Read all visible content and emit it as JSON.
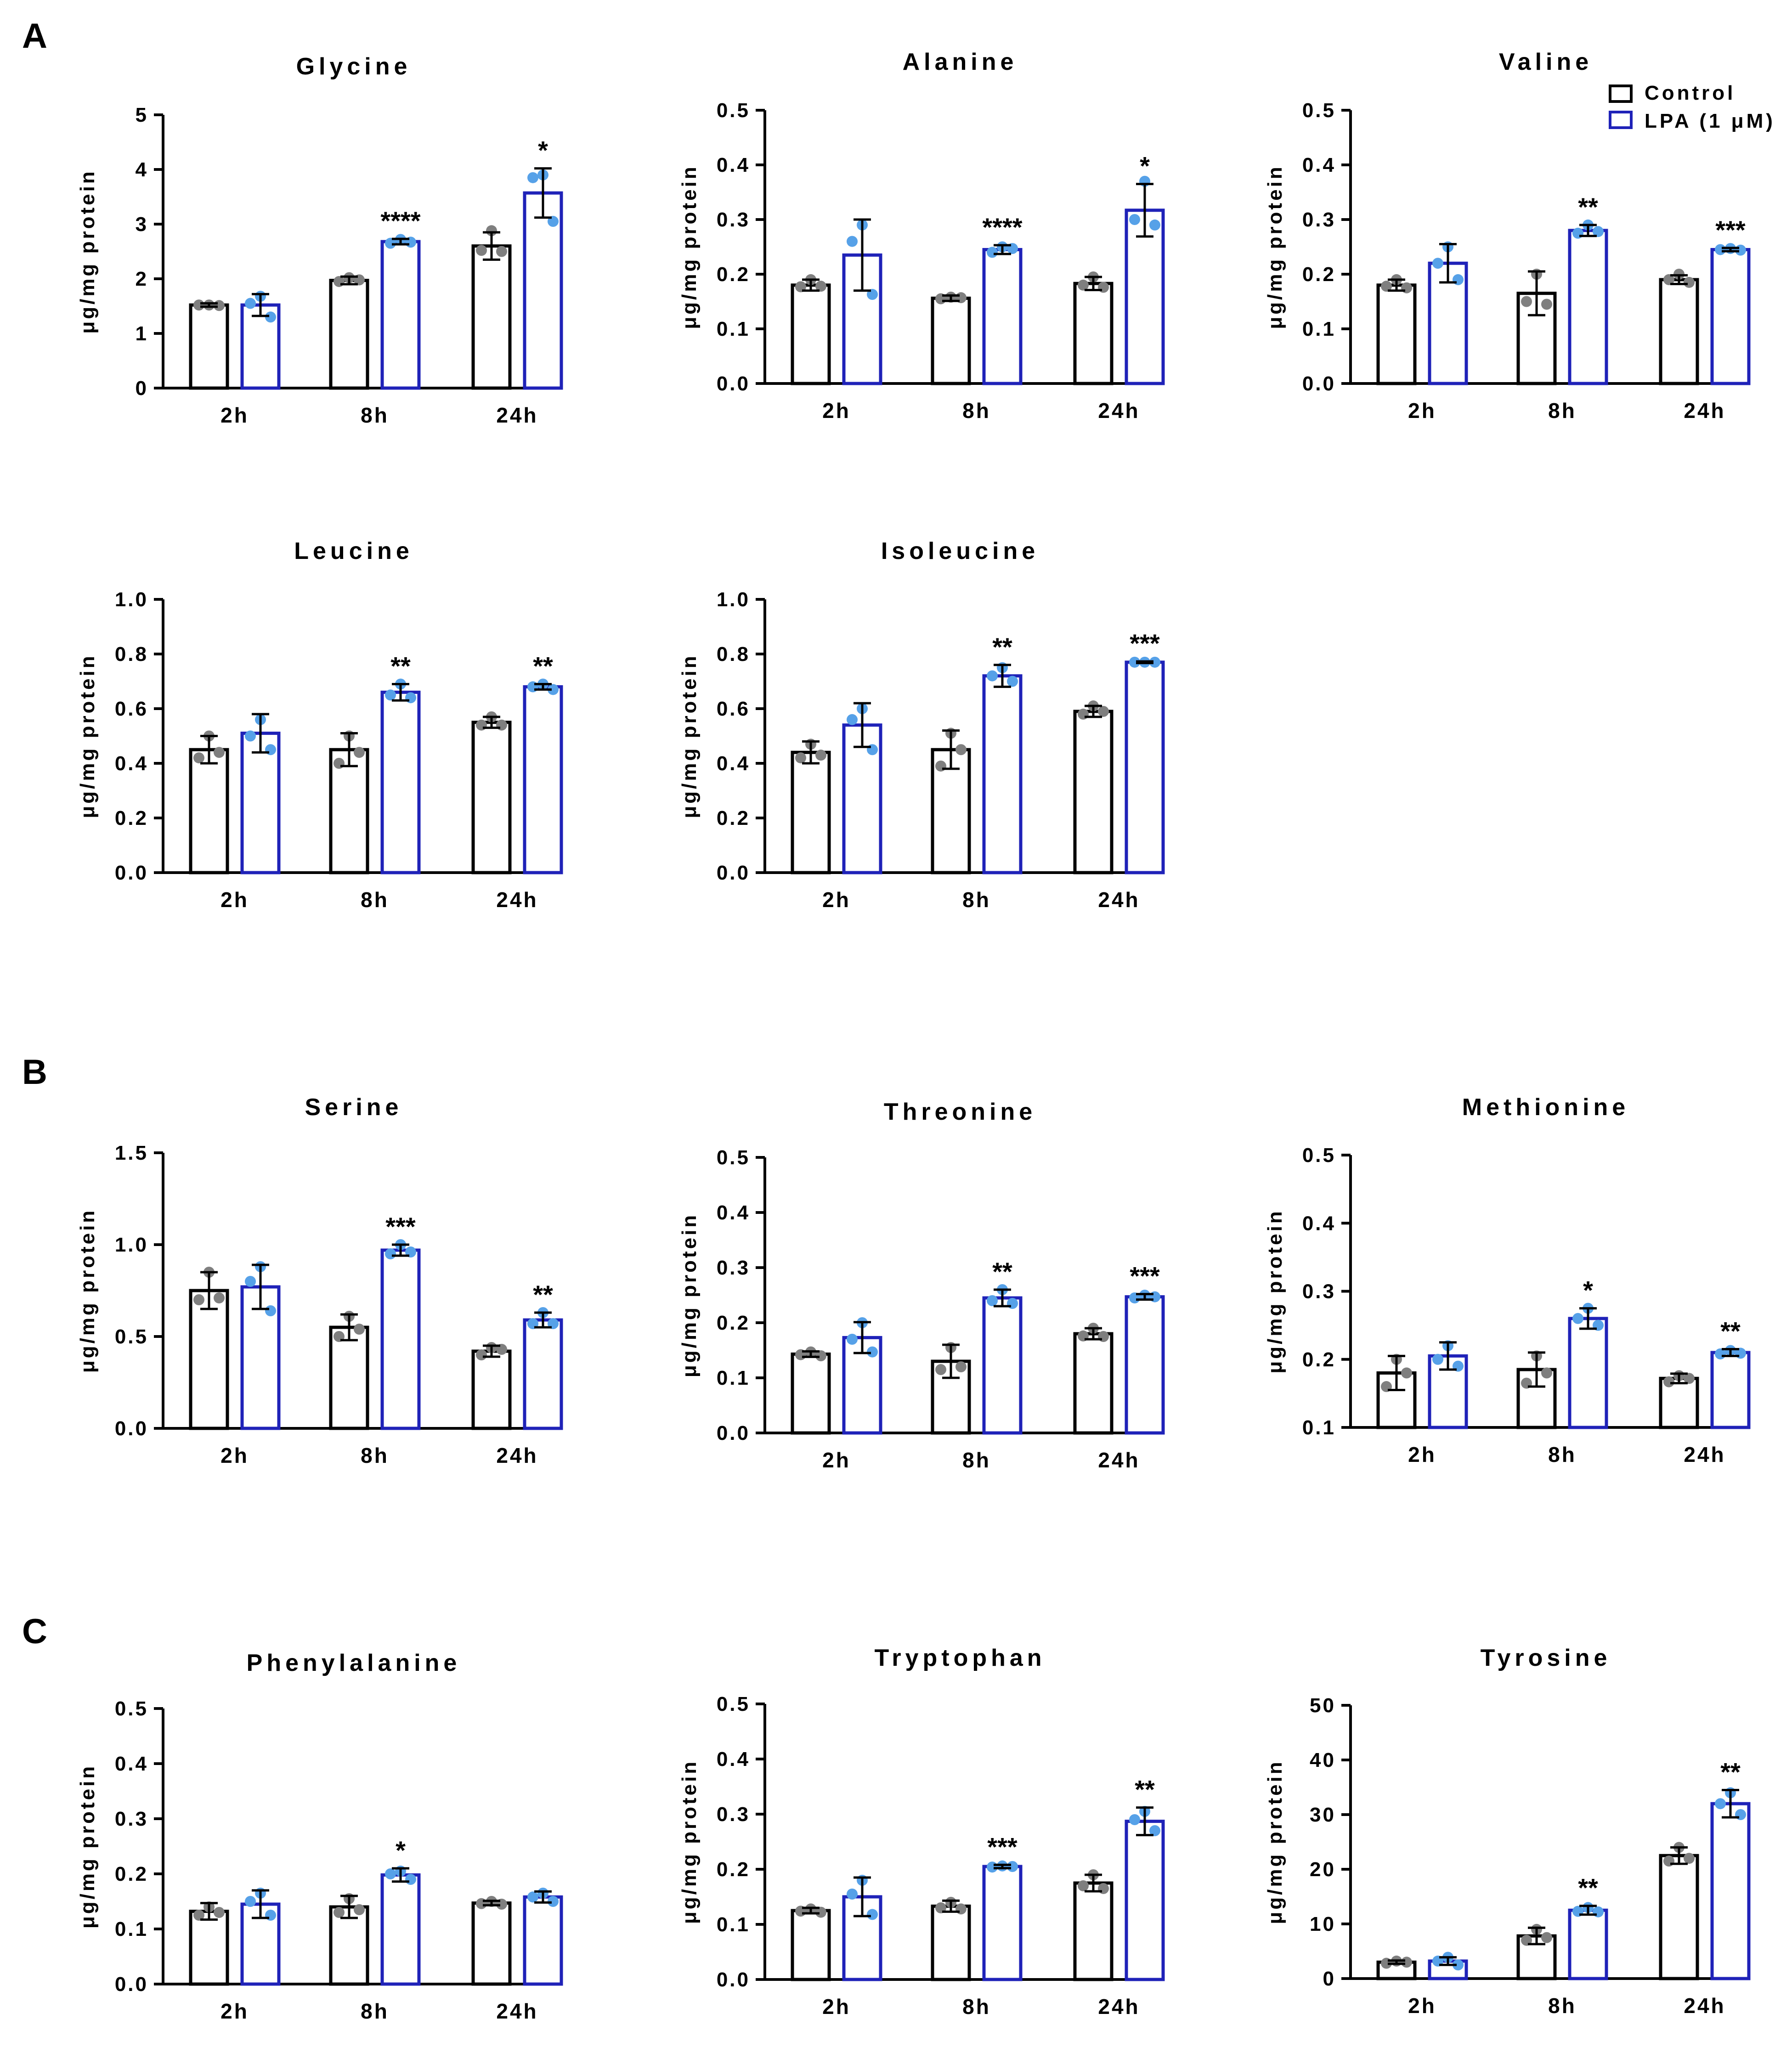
{
  "figure": {
    "section_labels": [
      "A",
      "B",
      "C"
    ],
    "ylabel": "μg/mg protein",
    "legend": [
      {
        "label": "Control",
        "color": "#000000"
      },
      {
        "label": "LPA (1 μM)",
        "color": "#1f22b8"
      }
    ],
    "dot_colors": {
      "control": "#7f7f7f",
      "lpa": "#56a1e8"
    }
  },
  "chart_data": [
    {
      "type": "bar",
      "title": "Glycine",
      "ylabel": "μg/mg protein",
      "categories": [
        "2h",
        "8h",
        "24h"
      ],
      "ylim": [
        0,
        5
      ],
      "yticks": [
        "0",
        "1",
        "2",
        "3",
        "4",
        "5"
      ],
      "series": [
        {
          "name": "Control",
          "values": [
            1.52,
            1.97,
            2.6
          ],
          "errors": [
            0.03,
            0.07,
            0.25
          ],
          "points": [
            [
              1.52,
              1.52,
              1.51
            ],
            [
              2.02,
              1.95,
              1.98
            ],
            [
              2.88,
              2.52,
              2.5
            ]
          ]
        },
        {
          "name": "LPA (1 μM)",
          "values": [
            1.52,
            2.68,
            3.57
          ],
          "errors": [
            0.2,
            0.05,
            0.45
          ],
          "points": [
            [
              1.68,
              1.55,
              1.3
            ],
            [
              2.72,
              2.65,
              2.67
            ],
            [
              3.9,
              3.85,
              3.05
            ]
          ]
        }
      ],
      "significance": [
        "",
        "****",
        "*"
      ]
    },
    {
      "type": "bar",
      "title": "Alanine",
      "ylabel": "μg/mg protein",
      "categories": [
        "2h",
        "8h",
        "24h"
      ],
      "ylim": [
        0,
        0.5
      ],
      "yticks": [
        "0.0",
        "0.1",
        "0.2",
        "0.3",
        "0.4",
        "0.5"
      ],
      "series": [
        {
          "name": "Control",
          "values": [
            0.18,
            0.156,
            0.183
          ],
          "errors": [
            0.01,
            0.005,
            0.012
          ],
          "points": [
            [
              0.19,
              0.177,
              0.178
            ],
            [
              0.158,
              0.155,
              0.157
            ],
            [
              0.195,
              0.18,
              0.176
            ]
          ]
        },
        {
          "name": "LPA (1 μM)",
          "values": [
            0.235,
            0.245,
            0.317
          ],
          "errors": [
            0.065,
            0.008,
            0.048
          ],
          "points": [
            [
              0.29,
              0.26,
              0.163
            ],
            [
              0.25,
              0.24,
              0.247
            ],
            [
              0.37,
              0.3,
              0.29
            ]
          ]
        }
      ],
      "significance": [
        "",
        "****",
        "*"
      ]
    },
    {
      "type": "bar",
      "title": "Valine",
      "ylabel": "μg/mg protein",
      "categories": [
        "2h",
        "8h",
        "24h"
      ],
      "ylim": [
        0,
        0.5
      ],
      "yticks": [
        "0.0",
        "0.1",
        "0.2",
        "0.3",
        "0.4",
        "0.5"
      ],
      "series": [
        {
          "name": "Control",
          "values": [
            0.18,
            0.165,
            0.19
          ],
          "errors": [
            0.01,
            0.04,
            0.008
          ],
          "points": [
            [
              0.19,
              0.178,
              0.175
            ],
            [
              0.2,
              0.15,
              0.145
            ],
            [
              0.2,
              0.19,
              0.185
            ]
          ]
        },
        {
          "name": "LPA (1 μM)",
          "values": [
            0.22,
            0.28,
            0.245
          ],
          "errors": [
            0.035,
            0.01,
            0.003
          ],
          "points": [
            [
              0.25,
              0.22,
              0.19
            ],
            [
              0.29,
              0.275,
              0.278
            ],
            [
              0.247,
              0.245,
              0.244
            ]
          ]
        }
      ],
      "significance": [
        "",
        "**",
        "***"
      ]
    },
    {
      "type": "bar",
      "title": "Leucine",
      "ylabel": "μg/mg protein",
      "categories": [
        "2h",
        "8h",
        "24h"
      ],
      "ylim": [
        0,
        1.0
      ],
      "yticks": [
        "0.0",
        "0.2",
        "0.4",
        "0.6",
        "0.8",
        "1.0"
      ],
      "series": [
        {
          "name": "Control",
          "values": [
            0.45,
            0.45,
            0.55
          ],
          "errors": [
            0.05,
            0.06,
            0.02
          ],
          "points": [
            [
              0.5,
              0.42,
              0.44
            ],
            [
              0.5,
              0.4,
              0.44
            ],
            [
              0.57,
              0.54,
              0.54
            ]
          ]
        },
        {
          "name": "LPA (1 μM)",
          "values": [
            0.51,
            0.66,
            0.68
          ],
          "errors": [
            0.07,
            0.03,
            0.01
          ],
          "points": [
            [
              0.56,
              0.5,
              0.45
            ],
            [
              0.69,
              0.65,
              0.64
            ],
            [
              0.69,
              0.68,
              0.67
            ]
          ]
        }
      ],
      "significance": [
        "",
        "**",
        "**"
      ]
    },
    {
      "type": "bar",
      "title": "Isoleucine",
      "ylabel": "μg/mg protein",
      "categories": [
        "2h",
        "8h",
        "24h"
      ],
      "ylim": [
        0,
        1.0
      ],
      "yticks": [
        "0.0",
        "0.2",
        "0.4",
        "0.6",
        "0.8",
        "1.0"
      ],
      "series": [
        {
          "name": "Control",
          "values": [
            0.44,
            0.45,
            0.59
          ],
          "errors": [
            0.04,
            0.07,
            0.02
          ],
          "points": [
            [
              0.47,
              0.42,
              0.43
            ],
            [
              0.51,
              0.39,
              0.45
            ],
            [
              0.61,
              0.58,
              0.59
            ]
          ]
        },
        {
          "name": "LPA (1 μM)",
          "values": [
            0.54,
            0.72,
            0.77
          ],
          "errors": [
            0.08,
            0.04,
            0.003
          ],
          "points": [
            [
              0.6,
              0.56,
              0.45
            ],
            [
              0.75,
              0.72,
              0.7
            ],
            [
              0.77,
              0.77,
              0.77
            ]
          ]
        }
      ],
      "significance": [
        "",
        "**",
        "***"
      ]
    },
    {
      "type": "bar",
      "title": "Serine",
      "ylabel": "μg/mg protein",
      "categories": [
        "2h",
        "8h",
        "24h"
      ],
      "ylim": [
        0,
        1.5
      ],
      "yticks": [
        "0.0",
        "0.5",
        "1.0",
        "1.5"
      ],
      "series": [
        {
          "name": "Control",
          "values": [
            0.75,
            0.55,
            0.42
          ],
          "errors": [
            0.1,
            0.07,
            0.03
          ],
          "points": [
            [
              0.85,
              0.7,
              0.71
            ],
            [
              0.61,
              0.5,
              0.54
            ],
            [
              0.44,
              0.4,
              0.43
            ]
          ]
        },
        {
          "name": "LPA (1 μM)",
          "values": [
            0.77,
            0.97,
            0.59
          ],
          "errors": [
            0.12,
            0.03,
            0.04
          ],
          "points": [
            [
              0.88,
              0.8,
              0.64
            ],
            [
              1.0,
              0.95,
              0.96
            ],
            [
              0.63,
              0.57,
              0.57
            ]
          ]
        }
      ],
      "significance": [
        "",
        "***",
        "**"
      ]
    },
    {
      "type": "bar",
      "title": "Threonine",
      "ylabel": "μg/mg protein",
      "categories": [
        "2h",
        "8h",
        "24h"
      ],
      "ylim": [
        0,
        0.5
      ],
      "yticks": [
        "0.0",
        "0.1",
        "0.2",
        "0.3",
        "0.4",
        "0.5"
      ],
      "series": [
        {
          "name": "Control",
          "values": [
            0.143,
            0.13,
            0.18
          ],
          "errors": [
            0.005,
            0.03,
            0.01
          ],
          "points": [
            [
              0.147,
              0.142,
              0.14
            ],
            [
              0.155,
              0.115,
              0.12
            ],
            [
              0.19,
              0.176,
              0.175
            ]
          ]
        },
        {
          "name": "LPA (1 μM)",
          "values": [
            0.173,
            0.245,
            0.247
          ],
          "errors": [
            0.028,
            0.015,
            0.005
          ],
          "points": [
            [
              0.2,
              0.17,
              0.147
            ],
            [
              0.26,
              0.24,
              0.235
            ],
            [
              0.25,
              0.245,
              0.247
            ]
          ]
        }
      ],
      "significance": [
        "",
        "**",
        "***"
      ]
    },
    {
      "type": "bar",
      "title": "Methionine",
      "ylabel": "μg/mg protein",
      "categories": [
        "2h",
        "8h",
        "24h"
      ],
      "ylim": [
        0.1,
        0.5
      ],
      "yticks": [
        "0.1",
        "0.2",
        "0.3",
        "0.4",
        "0.5"
      ],
      "series": [
        {
          "name": "Control",
          "values": [
            0.18,
            0.185,
            0.172
          ],
          "errors": [
            0.025,
            0.025,
            0.007
          ],
          "points": [
            [
              0.2,
              0.16,
              0.18
            ],
            [
              0.205,
              0.165,
              0.18
            ],
            [
              0.176,
              0.167,
              0.172
            ]
          ]
        },
        {
          "name": "LPA (1 μM)",
          "values": [
            0.205,
            0.26,
            0.21
          ],
          "errors": [
            0.02,
            0.015,
            0.005
          ],
          "points": [
            [
              0.22,
              0.2,
              0.19
            ],
            [
              0.275,
              0.26,
              0.25
            ],
            [
              0.213,
              0.208,
              0.209
            ]
          ]
        }
      ],
      "significance": [
        "",
        "*",
        "**"
      ]
    },
    {
      "type": "bar",
      "title": "Phenylalanine",
      "ylabel": "μg/mg protein",
      "categories": [
        "2h",
        "8h",
        "24h"
      ],
      "ylim": [
        0,
        0.5
      ],
      "yticks": [
        "0.0",
        "0.1",
        "0.2",
        "0.3",
        "0.4",
        "0.5"
      ],
      "series": [
        {
          "name": "Control",
          "values": [
            0.132,
            0.14,
            0.147
          ],
          "errors": [
            0.015,
            0.02,
            0.004
          ],
          "points": [
            [
              0.14,
              0.125,
              0.13
            ],
            [
              0.155,
              0.13,
              0.135
            ],
            [
              0.15,
              0.146,
              0.145
            ]
          ]
        },
        {
          "name": "LPA (1 μM)",
          "values": [
            0.145,
            0.198,
            0.158
          ],
          "errors": [
            0.025,
            0.012,
            0.01
          ],
          "points": [
            [
              0.165,
              0.15,
              0.125
            ],
            [
              0.205,
              0.2,
              0.19
            ],
            [
              0.165,
              0.158,
              0.15
            ]
          ]
        }
      ],
      "significance": [
        "",
        "*",
        ""
      ]
    },
    {
      "type": "bar",
      "title": "Tryptophan",
      "ylabel": "μg/mg protein",
      "categories": [
        "2h",
        "8h",
        "24h"
      ],
      "ylim": [
        0,
        0.5
      ],
      "yticks": [
        "0.0",
        "0.1",
        "0.2",
        "0.3",
        "0.4",
        "0.5"
      ],
      "series": [
        {
          "name": "Control",
          "values": [
            0.125,
            0.133,
            0.175
          ],
          "errors": [
            0.005,
            0.01,
            0.015
          ],
          "points": [
            [
              0.128,
              0.124,
              0.122
            ],
            [
              0.14,
              0.13,
              0.128
            ],
            [
              0.19,
              0.17,
              0.165
            ]
          ]
        },
        {
          "name": "LPA (1 μM)",
          "values": [
            0.15,
            0.205,
            0.287
          ],
          "errors": [
            0.035,
            0.003,
            0.025
          ],
          "points": [
            [
              0.18,
              0.155,
              0.118
            ],
            [
              0.206,
              0.204,
              0.205
            ],
            [
              0.305,
              0.29,
              0.27
            ]
          ]
        }
      ],
      "significance": [
        "",
        "***",
        "**"
      ]
    },
    {
      "type": "bar",
      "title": "Tyrosine",
      "ylabel": "μg/mg protein",
      "categories": [
        "2h",
        "8h",
        "24h"
      ],
      "ylim": [
        0,
        50
      ],
      "yticks": [
        "0",
        "10",
        "20",
        "30",
        "40",
        "50"
      ],
      "series": [
        {
          "name": "Control",
          "values": [
            3,
            7.8,
            22.5
          ],
          "errors": [
            0.3,
            1.5,
            1.5
          ],
          "points": [
            [
              3.2,
              2.8,
              3.0
            ],
            [
              9,
              7,
              7.5
            ],
            [
              24,
              21.5,
              22
            ]
          ]
        },
        {
          "name": "LPA (1 μM)",
          "values": [
            3.2,
            12.5,
            32
          ],
          "errors": [
            0.7,
            0.8,
            2.5
          ],
          "points": [
            [
              3.9,
              3.2,
              2.5
            ],
            [
              13,
              12.3,
              12.2
            ],
            [
              34,
              32,
              30
            ]
          ]
        }
      ],
      "significance": [
        "",
        "**",
        "**"
      ]
    }
  ]
}
